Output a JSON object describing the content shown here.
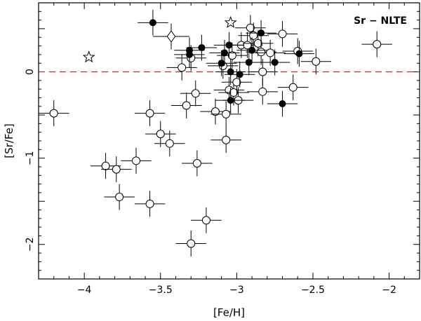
{
  "chart_data": {
    "type": "scatter",
    "title": "",
    "xlabel": "[Fe/H]",
    "ylabel": "[Sr/Fe]",
    "annotation": "Sr − NLTE",
    "xlim": [
      -4.3,
      -1.8
    ],
    "ylim": [
      -2.4,
      0.8
    ],
    "x_ticks": [
      -4,
      -3.5,
      -3,
      -2.5,
      -2
    ],
    "x_tick_labels": [
      "−4",
      "−3.5",
      "−3",
      "−2.5",
      "−2"
    ],
    "y_ticks": [
      0,
      -1,
      -2
    ],
    "y_tick_labels": [
      "0",
      "−1",
      "−2"
    ],
    "reference_line": {
      "y": 0,
      "style": "dashed",
      "color": "#d42020"
    },
    "grid": false,
    "series": [
      {
        "marker": "open-circle",
        "xerr": 0.1,
        "yerr": 0.15,
        "points": [
          [
            -4.2,
            -0.48
          ],
          [
            -3.86,
            -1.09
          ],
          [
            -3.79,
            -1.13
          ],
          [
            -3.77,
            -1.45
          ],
          [
            -3.66,
            -1.03
          ],
          [
            -3.57,
            -0.48
          ],
          [
            -3.57,
            -1.53
          ],
          [
            -3.5,
            -0.72
          ],
          [
            -3.44,
            -0.83
          ],
          [
            -3.36,
            0.05
          ],
          [
            -3.33,
            -0.39
          ],
          [
            -3.3,
            -1.99
          ],
          [
            -3.3,
            0.16
          ],
          [
            -3.27,
            -0.25
          ],
          [
            -3.26,
            -1.06
          ],
          [
            -3.2,
            -1.72
          ],
          [
            -3.14,
            -0.46
          ],
          [
            -3.09,
            0.07
          ],
          [
            -3.07,
            -0.49
          ],
          [
            -3.07,
            -0.79
          ],
          [
            -3.05,
            -0.21
          ],
          [
            -3.03,
            0.19
          ],
          [
            -3.02,
            -0.24
          ],
          [
            -3.0,
            -0.12
          ],
          [
            -2.99,
            -0.33
          ],
          [
            -2.97,
            0.31
          ],
          [
            -2.93,
            0.31
          ],
          [
            -2.91,
            0.51
          ],
          [
            -2.89,
            0.42
          ],
          [
            -2.86,
            0.33
          ],
          [
            -2.84,
            0.23
          ],
          [
            -2.83,
            0.0
          ],
          [
            -2.83,
            -0.23
          ],
          [
            -2.78,
            0.22
          ],
          [
            -2.7,
            0.44
          ],
          [
            -2.63,
            -0.18
          ],
          [
            -2.6,
            0.24
          ],
          [
            -2.48,
            0.12
          ],
          [
            -2.08,
            0.32
          ]
        ]
      },
      {
        "marker": "filled-circle",
        "xerr": 0.1,
        "yerr": 0.15,
        "points": [
          [
            -3.55,
            0.57
          ],
          [
            -3.31,
            0.25
          ],
          [
            -3.31,
            0.2
          ],
          [
            -3.23,
            0.28
          ],
          [
            -3.1,
            0.1
          ],
          [
            -3.08,
            0.22
          ],
          [
            -3.05,
            0.31
          ],
          [
            -3.04,
            -0.33
          ],
          [
            -3.04,
            0.0
          ],
          [
            -2.98,
            -0.03
          ],
          [
            -2.92,
            0.11
          ],
          [
            -2.9,
            0.25
          ],
          [
            -2.84,
            0.45
          ],
          [
            -2.75,
            0.11
          ],
          [
            -2.7,
            -0.37
          ],
          [
            -2.59,
            0.21
          ]
        ]
      },
      {
        "marker": "diamond",
        "xerr": 0.12,
        "yerr": 0.15,
        "points": [
          [
            -3.43,
            0.41
          ]
        ]
      },
      {
        "marker": "star",
        "points": [
          [
            -3.97,
            0.17
          ],
          [
            -3.04,
            0.57
          ]
        ]
      }
    ]
  }
}
